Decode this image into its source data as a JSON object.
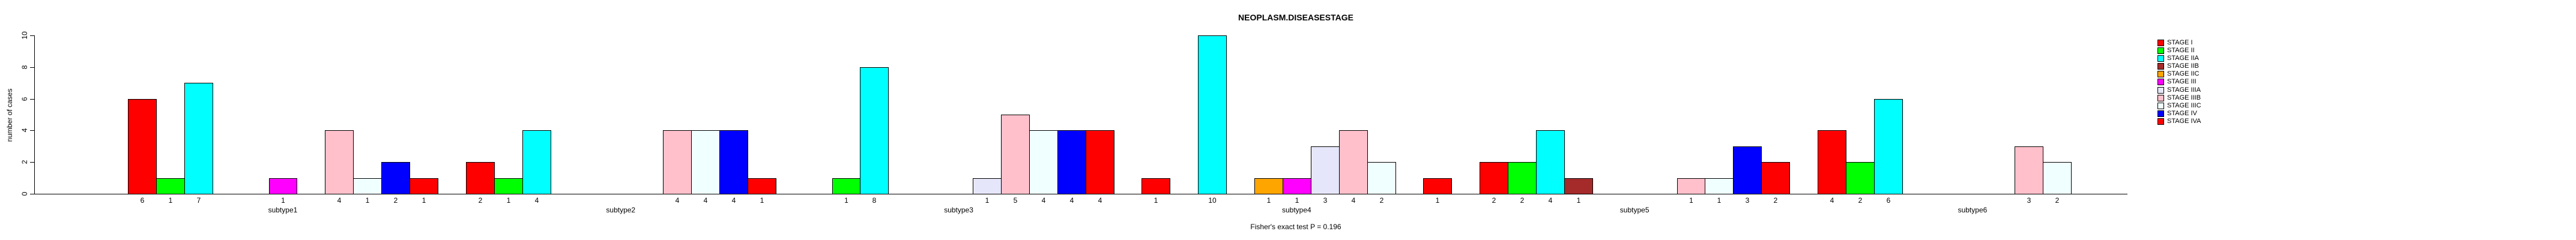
{
  "chart_data": {
    "type": "bar",
    "title": "NEOPLASM.DISEASESTAGE",
    "ylabel": "number of cases",
    "xlabel": "",
    "footnote": "Fisher's exact test P = 0.196",
    "ylim": [
      0,
      10
    ],
    "y_ticks": [
      0,
      2,
      4,
      6,
      8,
      10
    ],
    "grid": false,
    "legend_position": "right",
    "bar_value_labels": true,
    "categories": [
      "subtype1",
      "subtype2",
      "subtype3",
      "subtype4",
      "subtype5",
      "subtype6"
    ],
    "series": [
      {
        "name": "STAGE I",
        "color": "#FF0000",
        "values": [
          6,
          2,
          0,
          1,
          2,
          4
        ]
      },
      {
        "name": "STAGE II",
        "color": "#00FF00",
        "values": [
          1,
          1,
          1,
          0,
          2,
          2
        ]
      },
      {
        "name": "STAGE IIA",
        "color": "#00FFFF",
        "values": [
          7,
          4,
          8,
          10,
          4,
          6
        ]
      },
      {
        "name": "STAGE IIB",
        "color": "#A52A2A",
        "values": [
          0,
          0,
          0,
          0,
          1,
          0
        ]
      },
      {
        "name": "STAGE IIC",
        "color": "#FFA500",
        "values": [
          0,
          0,
          0,
          1,
          0,
          0
        ]
      },
      {
        "name": "STAGE III",
        "color": "#FF00FF",
        "values": [
          1,
          0,
          0,
          1,
          0,
          0
        ]
      },
      {
        "name": "STAGE IIIA",
        "color": "#E6E6FA",
        "values": [
          0,
          0,
          1,
          3,
          0,
          0
        ]
      },
      {
        "name": "STAGE IIIB",
        "color": "#FFC0CB",
        "values": [
          4,
          4,
          5,
          4,
          1,
          3
        ]
      },
      {
        "name": "STAGE IIIC",
        "color": "#F0FFFF",
        "values": [
          1,
          4,
          4,
          2,
          1,
          2
        ]
      },
      {
        "name": "STAGE IV",
        "color": "#0000FF",
        "values": [
          2,
          4,
          4,
          0,
          3,
          0
        ]
      },
      {
        "name": "STAGE IVA",
        "color": "#FF0000",
        "values": [
          1,
          1,
          4,
          1,
          2,
          0
        ]
      }
    ]
  }
}
